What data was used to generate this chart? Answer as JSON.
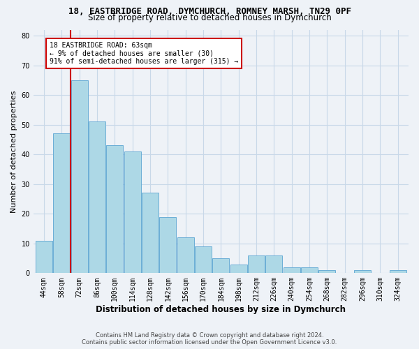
{
  "title1": "18, EASTBRIDGE ROAD, DYMCHURCH, ROMNEY MARSH, TN29 0PF",
  "title2": "Size of property relative to detached houses in Dymchurch",
  "xlabel": "Distribution of detached houses by size in Dymchurch",
  "ylabel": "Number of detached properties",
  "categories": [
    "44sqm",
    "58sqm",
    "72sqm",
    "86sqm",
    "100sqm",
    "114sqm",
    "128sqm",
    "142sqm",
    "156sqm",
    "170sqm",
    "184sqm",
    "198sqm",
    "212sqm",
    "226sqm",
    "240sqm",
    "254sqm",
    "268sqm",
    "282sqm",
    "296sqm",
    "310sqm",
    "324sqm"
  ],
  "bar_values": [
    11,
    47,
    65,
    51,
    43,
    41,
    27,
    19,
    12,
    9,
    5,
    3,
    6,
    6,
    2,
    2,
    1,
    0,
    1,
    0,
    1
  ],
  "bar_color": "#add8e6",
  "bar_edge_color": "#6baed6",
  "vline_x": 1.5,
  "vline_color": "#cc0000",
  "annotation_text": "18 EASTBRIDGE ROAD: 63sqm\n← 9% of detached houses are smaller (30)\n91% of semi-detached houses are larger (315) →",
  "annotation_box_color": "#ffffff",
  "annotation_box_edge_color": "#cc0000",
  "ylim": [
    0,
    82
  ],
  "yticks": [
    0,
    10,
    20,
    30,
    40,
    50,
    60,
    70,
    80
  ],
  "grid_color": "#c8d8e8",
  "footer1": "Contains HM Land Registry data © Crown copyright and database right 2024.",
  "footer2": "Contains public sector information licensed under the Open Government Licence v3.0.",
  "bg_color": "#eef2f7",
  "plot_bg_color": "#eef2f7",
  "title1_fontsize": 9,
  "title2_fontsize": 8.5,
  "ylabel_fontsize": 8,
  "xlabel_fontsize": 8.5,
  "tick_fontsize": 7,
  "footer_fontsize": 6,
  "annot_fontsize": 7
}
